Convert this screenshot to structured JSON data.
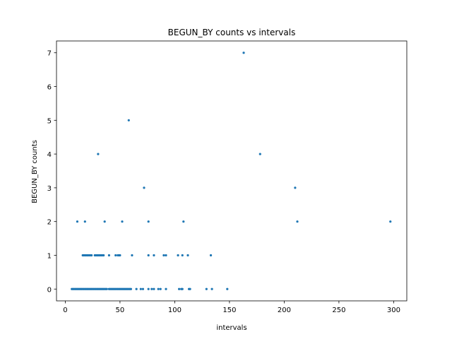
{
  "chart_data": {
    "type": "scatter",
    "title": "BEGUN_BY counts vs intervals",
    "xlabel": "intervals",
    "ylabel": "BEGUN_BY counts",
    "xlim": [
      -8,
      312
    ],
    "ylim": [
      -0.35,
      7.35
    ],
    "xticks": [
      0,
      50,
      100,
      150,
      200,
      250,
      300
    ],
    "yticks": [
      0,
      1,
      2,
      3,
      4,
      5,
      6,
      7
    ],
    "color": "#1f77b4",
    "series": [
      {
        "name": "BEGUN_BY",
        "points": [
          [
            6,
            0
          ],
          [
            7,
            0
          ],
          [
            8,
            0
          ],
          [
            9,
            0
          ],
          [
            10,
            0
          ],
          [
            11,
            0
          ],
          [
            12,
            0
          ],
          [
            13,
            0
          ],
          [
            14,
            0
          ],
          [
            15,
            0
          ],
          [
            16,
            0
          ],
          [
            17,
            0
          ],
          [
            18,
            0
          ],
          [
            19,
            0
          ],
          [
            20,
            0
          ],
          [
            21,
            0
          ],
          [
            22,
            0
          ],
          [
            23,
            0
          ],
          [
            24,
            0
          ],
          [
            25,
            0
          ],
          [
            26,
            0
          ],
          [
            27,
            0
          ],
          [
            28,
            0
          ],
          [
            29,
            0
          ],
          [
            30,
            0
          ],
          [
            31,
            0
          ],
          [
            32,
            0
          ],
          [
            33,
            0
          ],
          [
            34,
            0
          ],
          [
            35,
            0
          ],
          [
            36,
            0
          ],
          [
            37,
            0
          ],
          [
            38,
            0
          ],
          [
            40,
            0
          ],
          [
            41,
            0
          ],
          [
            42,
            0
          ],
          [
            43,
            0
          ],
          [
            44,
            0
          ],
          [
            45,
            0
          ],
          [
            46,
            0
          ],
          [
            47,
            0
          ],
          [
            48,
            0
          ],
          [
            49,
            0
          ],
          [
            50,
            0
          ],
          [
            51,
            0
          ],
          [
            52,
            0
          ],
          [
            53,
            0
          ],
          [
            54,
            0
          ],
          [
            55,
            0
          ],
          [
            56,
            0
          ],
          [
            57,
            0
          ],
          [
            58,
            0
          ],
          [
            59,
            0
          ],
          [
            60,
            0
          ],
          [
            65,
            0
          ],
          [
            69,
            0
          ],
          [
            71,
            0
          ],
          [
            76,
            0
          ],
          [
            79,
            0
          ],
          [
            81,
            0
          ],
          [
            85,
            0
          ],
          [
            87,
            0
          ],
          [
            92,
            0
          ],
          [
            104,
            0
          ],
          [
            106,
            0
          ],
          [
            107,
            0
          ],
          [
            113,
            0
          ],
          [
            114,
            0
          ],
          [
            129,
            0
          ],
          [
            134,
            0
          ],
          [
            148,
            0
          ],
          [
            16,
            1
          ],
          [
            17,
            1
          ],
          [
            18,
            1
          ],
          [
            19,
            1
          ],
          [
            20,
            1
          ],
          [
            21,
            1
          ],
          [
            22,
            1
          ],
          [
            23,
            1
          ],
          [
            24,
            1
          ],
          [
            27,
            1
          ],
          [
            28,
            1
          ],
          [
            29,
            1
          ],
          [
            30,
            1
          ],
          [
            31,
            1
          ],
          [
            32,
            1
          ],
          [
            33,
            1
          ],
          [
            34,
            1
          ],
          [
            35,
            1
          ],
          [
            40,
            1
          ],
          [
            46,
            1
          ],
          [
            48,
            1
          ],
          [
            49,
            1
          ],
          [
            50,
            1
          ],
          [
            61,
            1
          ],
          [
            76,
            1
          ],
          [
            81,
            1
          ],
          [
            90,
            1
          ],
          [
            92,
            1
          ],
          [
            103,
            1
          ],
          [
            107,
            1
          ],
          [
            112,
            1
          ],
          [
            133,
            1
          ],
          [
            11,
            2
          ],
          [
            18,
            2
          ],
          [
            36,
            2
          ],
          [
            52,
            2
          ],
          [
            76,
            2
          ],
          [
            108,
            2
          ],
          [
            212,
            2
          ],
          [
            297,
            2
          ],
          [
            72,
            3
          ],
          [
            210,
            3
          ],
          [
            30,
            4
          ],
          [
            178,
            4
          ],
          [
            58,
            5
          ],
          [
            163,
            7
          ]
        ]
      }
    ]
  }
}
